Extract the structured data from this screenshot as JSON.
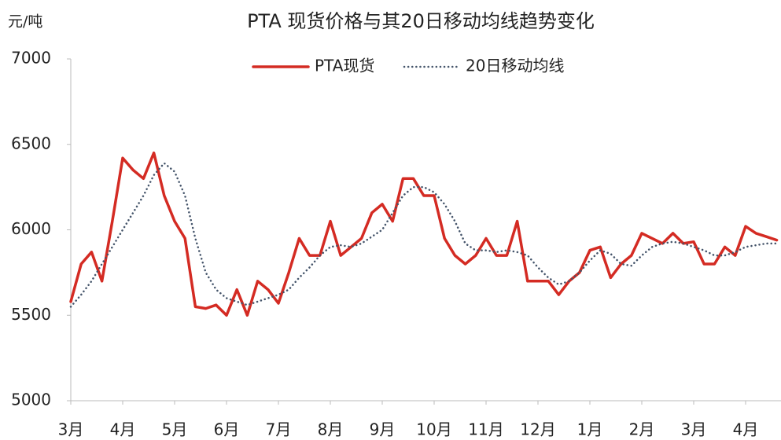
{
  "chart_data": {
    "type": "line",
    "title": "PTA 现货价格与其20日移动均线趋势变化",
    "y_label": "元/吨",
    "categories": [
      "3月",
      null,
      null,
      null,
      null,
      "4月",
      null,
      null,
      null,
      null,
      "5月",
      null,
      null,
      null,
      null,
      "6月",
      null,
      null,
      null,
      null,
      "7月",
      null,
      null,
      null,
      null,
      "8月",
      null,
      null,
      null,
      null,
      "9月",
      null,
      null,
      null,
      null,
      "10月",
      null,
      null,
      null,
      null,
      "11月",
      null,
      null,
      null,
      null,
      "12月",
      null,
      null,
      null,
      null,
      "1月",
      null,
      null,
      null,
      null,
      "2月",
      null,
      null,
      null,
      null,
      "3月",
      null,
      null,
      null,
      null,
      "4月",
      null,
      null,
      null
    ],
    "series": [
      {
        "name": "PTA现货",
        "color": "#d42b23",
        "style": "solid",
        "values": [
          5580,
          5800,
          5870,
          5700,
          6050,
          6420,
          6350,
          6300,
          6450,
          6200,
          6050,
          5950,
          5550,
          5540,
          5560,
          5500,
          5650,
          5500,
          5700,
          5650,
          5570,
          5750,
          5950,
          5850,
          5850,
          6050,
          5850,
          5900,
          5950,
          6100,
          6150,
          6050,
          6300,
          6300,
          6200,
          6200,
          5950,
          5850,
          5800,
          5850,
          5950,
          5850,
          5850,
          6050,
          5700,
          5700,
          5700,
          5620,
          5700,
          5750,
          5880,
          5900,
          5720,
          5800,
          5850,
          5980,
          5950,
          5920,
          5980,
          5920,
          5930,
          5800,
          5800,
          5900,
          5850,
          6020,
          5980,
          5960,
          5940
        ]
      },
      {
        "name": "20日移动均线",
        "color": "#44546a",
        "style": "dotted",
        "values": [
          5550,
          5620,
          5700,
          5800,
          5900,
          6000,
          6100,
          6200,
          6320,
          6390,
          6340,
          6200,
          5950,
          5750,
          5650,
          5600,
          5580,
          5560,
          5580,
          5600,
          5620,
          5650,
          5720,
          5780,
          5850,
          5900,
          5910,
          5900,
          5920,
          5960,
          6000,
          6100,
          6200,
          6250,
          6250,
          6220,
          6150,
          6050,
          5920,
          5880,
          5880,
          5870,
          5880,
          5870,
          5850,
          5780,
          5720,
          5680,
          5700,
          5750,
          5820,
          5880,
          5860,
          5800,
          5790,
          5850,
          5900,
          5920,
          5930,
          5920,
          5900,
          5880,
          5850,
          5850,
          5870,
          5900,
          5910,
          5920,
          5920
        ]
      }
    ],
    "ylim": [
      5000,
      7000
    ],
    "yticks": [
      5000,
      5500,
      6000,
      6500,
      7000
    ],
    "grid": false,
    "legend": "top"
  }
}
